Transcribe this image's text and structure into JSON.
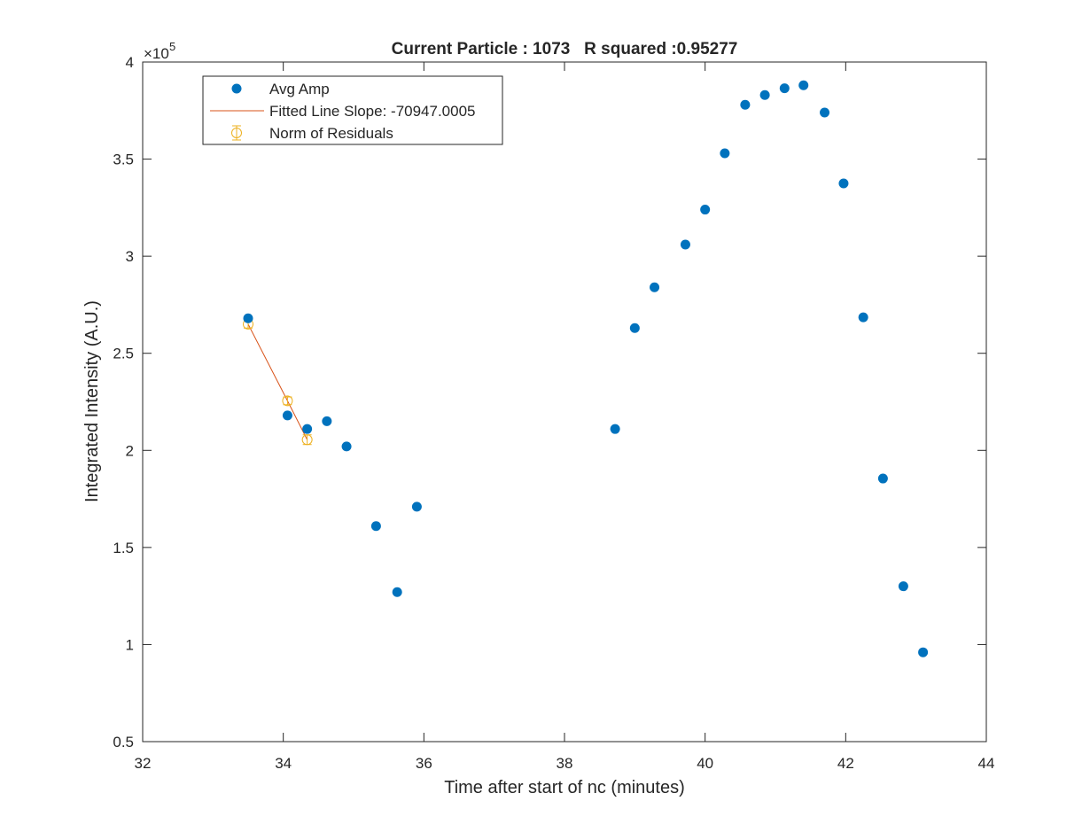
{
  "chart_data": {
    "type": "scatter",
    "title": "Current Particle : 1073   R squared :0.95277",
    "xlabel": "Time after start of nc (minutes)",
    "ylabel": "Integrated Intensity (A.U.)",
    "y_exponent_base": "×10",
    "y_exponent_power": "5",
    "xlim": [
      32,
      44
    ],
    "ylim": [
      0.5,
      4
    ],
    "y_scale_factor": 100000,
    "xticks": [
      32,
      34,
      36,
      38,
      40,
      42,
      44
    ],
    "yticks": [
      0.5,
      1,
      1.5,
      2,
      2.5,
      3,
      3.5,
      4
    ],
    "xtick_labels": [
      "32",
      "34",
      "36",
      "38",
      "40",
      "42",
      "44"
    ],
    "ytick_labels": [
      "0.5",
      "1",
      "1.5",
      "2",
      "2.5",
      "3",
      "3.5",
      "4"
    ],
    "grid": false,
    "legend_position": "top-left",
    "series": [
      {
        "name": "Avg Amp",
        "kind": "points",
        "color": "#0072BD",
        "x": [
          33.5,
          34.06,
          34.34,
          34.62,
          34.9,
          35.32,
          35.62,
          35.9,
          38.72,
          39.0,
          39.28,
          39.72,
          40.0,
          40.28,
          40.57,
          40.85,
          41.13,
          41.4,
          41.7,
          41.97,
          42.25,
          42.53,
          42.82,
          43.1
        ],
        "y": [
          2.68,
          2.18,
          2.11,
          2.15,
          2.02,
          1.61,
          1.27,
          1.71,
          2.11,
          2.63,
          2.84,
          3.06,
          3.24,
          3.53,
          3.78,
          3.83,
          3.865,
          3.88,
          3.74,
          3.375,
          2.685,
          1.855,
          1.3,
          0.96
        ]
      },
      {
        "name": "Fitted Line Slope: -70947.0005",
        "kind": "line",
        "color": "#D95319",
        "x": [
          33.5,
          34.06,
          34.34
        ],
        "y": [
          2.65,
          2.255,
          2.055
        ]
      },
      {
        "name": "Norm of Residuals",
        "kind": "errorbar",
        "color": "#EDB120",
        "x": [
          33.5,
          34.06,
          34.34
        ],
        "y": [
          2.65,
          2.255,
          2.055
        ],
        "err": [
          0.02,
          0.02,
          0.025
        ]
      }
    ]
  }
}
